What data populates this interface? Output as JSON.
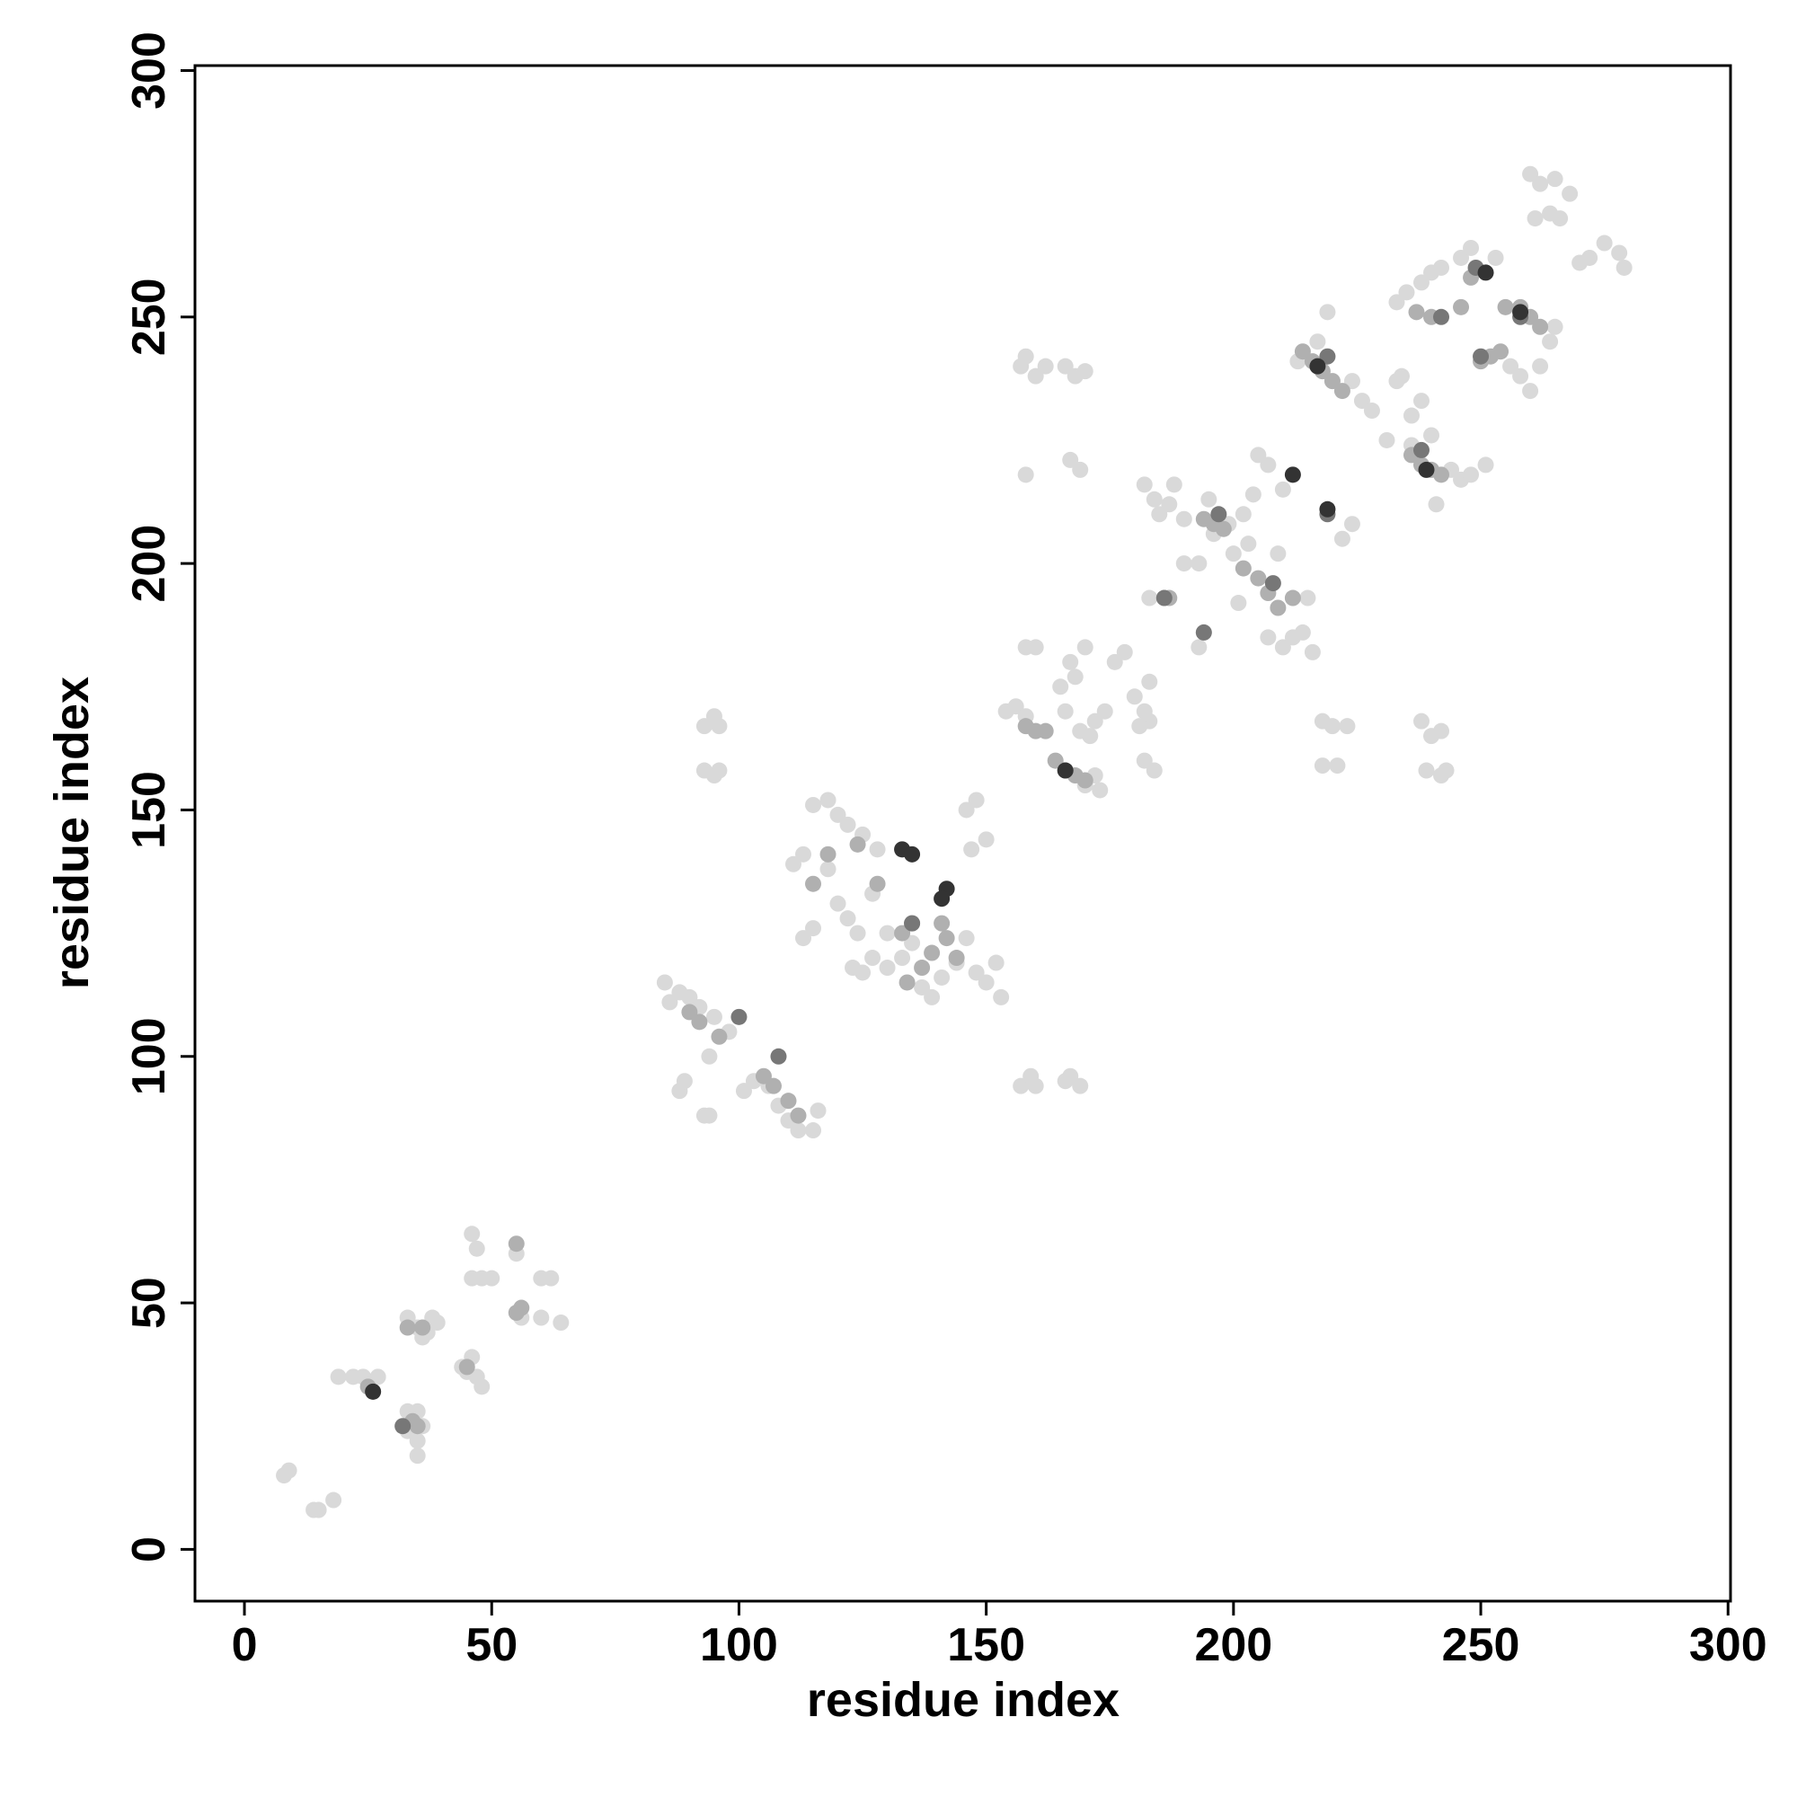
{
  "chart_data": {
    "type": "scatter",
    "xlabel": "residue index",
    "ylabel": "residue index",
    "xlim": [
      -10,
      300.5
    ],
    "ylim": [
      -10.5,
      301
    ],
    "xticks": [
      0,
      50,
      100,
      150,
      200,
      250,
      300
    ],
    "yticks": [
      0,
      50,
      100,
      150,
      200,
      250,
      300
    ],
    "series": [
      {
        "color": "#d9d9d9",
        "x": [
          8,
          9,
          14,
          15,
          18,
          19,
          22,
          24,
          27,
          33,
          35,
          35,
          36,
          35,
          33,
          33,
          35,
          37,
          38,
          39,
          36,
          44,
          46,
          47,
          48,
          45,
          46,
          47,
          48,
          50,
          46,
          56,
          55,
          60,
          62,
          60,
          64,
          85,
          86,
          88,
          90,
          92,
          95,
          98,
          88,
          89,
          93,
          94,
          94,
          93,
          95,
          96,
          93,
          95,
          96,
          101,
          103,
          106,
          108,
          110,
          112,
          115,
          116,
          111,
          113,
          115,
          118,
          120,
          122,
          125,
          128,
          118,
          120,
          122,
          124,
          127,
          130,
          123,
          125,
          127,
          130,
          133,
          135,
          137,
          139,
          141,
          144,
          146,
          148,
          150,
          153,
          152,
          147,
          150,
          146,
          148,
          113,
          115,
          154,
          156,
          158,
          158,
          160,
          157,
          158,
          160,
          162,
          158,
          168,
          170,
          166,
          167,
          169,
          157,
          159,
          160,
          167,
          169,
          166,
          165,
          167,
          168,
          170,
          166,
          169,
          171,
          172,
          174,
          176,
          178,
          180,
          182,
          183,
          183,
          181,
          182,
          184,
          170,
          172,
          173,
          182,
          184,
          185,
          187,
          188,
          190,
          183,
          186,
          190,
          193,
          195,
          196,
          199,
          202,
          204,
          193,
          194,
          201,
          200,
          203,
          209,
          207,
          210,
          212,
          214,
          216,
          215,
          218,
          220,
          223,
          218,
          221,
          222,
          224,
          205,
          207,
          210,
          213,
          217,
          219,
          224,
          226,
          228,
          233,
          234,
          236,
          238,
          231,
          236,
          240,
          244,
          246,
          248,
          241,
          251,
          238,
          240,
          242,
          239,
          242,
          243,
          233,
          235,
          238,
          240,
          242,
          246,
          248,
          253,
          256,
          258,
          260,
          262,
          264,
          265,
          260,
          262,
          265,
          264,
          266,
          268,
          270,
          272,
          275,
          278,
          279,
          261
        ],
        "y": [
          15,
          16,
          8,
          8,
          10,
          35,
          35,
          35,
          35,
          28,
          28,
          22,
          25,
          19,
          24,
          47,
          45,
          44,
          47,
          46,
          43,
          37,
          39,
          35,
          33,
          36,
          64,
          61,
          55,
          55,
          55,
          47,
          60,
          55,
          55,
          47,
          46,
          115,
          111,
          113,
          112,
          110,
          108,
          105,
          93,
          95,
          88,
          88,
          100,
          167,
          169,
          167,
          158,
          157,
          158,
          93,
          95,
          94,
          90,
          87,
          85,
          85,
          89,
          139,
          141,
          151,
          152,
          149,
          147,
          145,
          142,
          138,
          131,
          128,
          125,
          120,
          118,
          118,
          117,
          133,
          125,
          120,
          123,
          114,
          112,
          116,
          119,
          124,
          117,
          115,
          112,
          119,
          142,
          144,
          150,
          152,
          124,
          126,
          170,
          171,
          169,
          183,
          183,
          240,
          242,
          238,
          240,
          218,
          238,
          239,
          240,
          221,
          219,
          94,
          96,
          94,
          96,
          94,
          95,
          175,
          180,
          177,
          183,
          170,
          166,
          165,
          168,
          170,
          180,
          182,
          173,
          170,
          168,
          176,
          167,
          160,
          158,
          155,
          157,
          154,
          216,
          213,
          210,
          212,
          216,
          209,
          193,
          193,
          200,
          200,
          213,
          206,
          208,
          210,
          214,
          183,
          186,
          192,
          202,
          204,
          202,
          185,
          183,
          185,
          186,
          182,
          193,
          168,
          167,
          167,
          159,
          159,
          205,
          208,
          222,
          220,
          215,
          241,
          245,
          251,
          237,
          233,
          231,
          237,
          238,
          230,
          233,
          225,
          224,
          226,
          219,
          217,
          218,
          212,
          220,
          168,
          165,
          166,
          158,
          157,
          158,
          253,
          255,
          257,
          259,
          260,
          262,
          264,
          262,
          240,
          238,
          235,
          240,
          245,
          248,
          279,
          277,
          278,
          271,
          270,
          275,
          261,
          262,
          265,
          263,
          260,
          270
        ]
      },
      {
        "color": "#b0b0b0",
        "x": [
          25,
          26,
          34,
          35,
          33,
          36,
          45,
          55,
          56,
          55,
          90,
          92,
          96,
          105,
          107,
          110,
          112,
          115,
          118,
          124,
          128,
          133,
          134,
          137,
          139,
          141,
          142,
          144,
          135,
          158,
          160,
          162,
          164,
          166,
          168,
          170,
          187,
          194,
          196,
          198,
          202,
          205,
          207,
          209,
          212,
          214,
          216,
          218,
          220,
          222,
          236,
          238,
          240,
          242,
          237,
          240,
          246,
          248,
          250,
          252,
          254,
          255,
          258,
          260,
          262
        ],
        "y": [
          33,
          32,
          26,
          25,
          45,
          45,
          37,
          48,
          49,
          62,
          109,
          107,
          104,
          96,
          94,
          91,
          88,
          135,
          141,
          143,
          135,
          125,
          115,
          118,
          121,
          127,
          124,
          120,
          127,
          167,
          166,
          166,
          160,
          158,
          157,
          156,
          193,
          209,
          208,
          207,
          199,
          197,
          194,
          191,
          193,
          243,
          241,
          239,
          237,
          235,
          222,
          220,
          219,
          218,
          251,
          250,
          252,
          258,
          241,
          242,
          243,
          252,
          252,
          250,
          248
        ]
      },
      {
        "color": "#777777",
        "x": [
          32,
          100,
          108,
          135,
          186,
          194,
          197,
          208,
          219,
          219,
          238,
          249,
          258,
          250,
          242
        ],
        "y": [
          25,
          108,
          100,
          127,
          193,
          186,
          210,
          196,
          210,
          242,
          223,
          260,
          250,
          242,
          250
        ]
      },
      {
        "color": "#333333",
        "x": [
          133,
          135,
          142,
          141,
          212,
          219,
          251,
          258,
          217,
          239,
          26,
          166
        ],
        "y": [
          142,
          141,
          134,
          132,
          218,
          211,
          259,
          251,
          240,
          219,
          32,
          158
        ]
      }
    ]
  }
}
